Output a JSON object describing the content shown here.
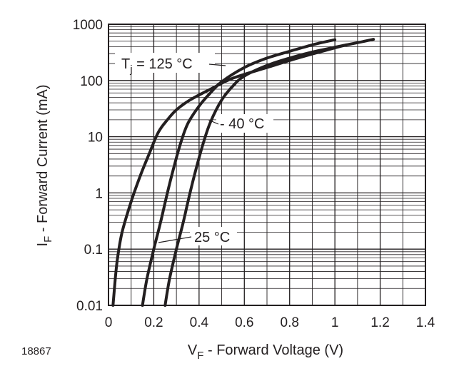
{
  "chart_data": {
    "type": "line",
    "title": "",
    "figure_id": "18867",
    "xlabel": {
      "main": "V",
      "sub": "F",
      "rest": " - Forward Voltage (V)"
    },
    "ylabel": {
      "main": "I",
      "sub": "F",
      "rest": " - Forward Current (mA)"
    },
    "xlim": [
      0,
      1.4
    ],
    "ylim": [
      0.01,
      1000
    ],
    "yscale": "log",
    "grid": true,
    "x_ticks": [
      "0",
      "0.2",
      "0.4",
      "0.6",
      "0.8",
      "1",
      "1.2",
      "1.4"
    ],
    "y_ticks": [
      "0.01",
      "0.1",
      "1",
      "10",
      "100",
      "1000"
    ],
    "annotations": {
      "t125": {
        "main": "T",
        "sub": "j",
        "rest": " = 125 °C"
      },
      "tm40": "- 40 °C",
      "t25": "25 °C"
    },
    "series": [
      {
        "x": [
          0.02,
          0.03,
          0.04,
          0.06,
          0.1,
          0.14,
          0.18,
          0.22,
          0.26,
          0.3,
          0.36,
          0.45,
          0.55,
          0.7,
          0.85,
          1.0,
          1.05
        ],
        "y": [
          0.01,
          0.03,
          0.07,
          0.2,
          0.7,
          2,
          5,
          12,
          20,
          30,
          45,
          70,
          110,
          170,
          260,
          380,
          430
        ]
      },
      {
        "x": [
          0.15,
          0.17,
          0.2,
          0.23,
          0.26,
          0.29,
          0.32,
          0.35,
          0.4,
          0.45,
          0.5,
          0.6,
          0.7,
          0.8,
          0.9,
          1.0
        ],
        "y": [
          0.01,
          0.03,
          0.1,
          0.3,
          1,
          3,
          8,
          17,
          35,
          60,
          95,
          170,
          250,
          330,
          430,
          530
        ]
      },
      {
        "x": [
          0.25,
          0.27,
          0.3,
          0.33,
          0.36,
          0.39,
          0.42,
          0.45,
          0.5,
          0.55,
          0.6,
          0.7,
          0.8,
          0.9,
          1.0,
          1.1,
          1.17
        ],
        "y": [
          0.01,
          0.03,
          0.1,
          0.3,
          1,
          3,
          8,
          18,
          45,
          80,
          120,
          185,
          250,
          320,
          390,
          470,
          540
        ]
      }
    ]
  }
}
